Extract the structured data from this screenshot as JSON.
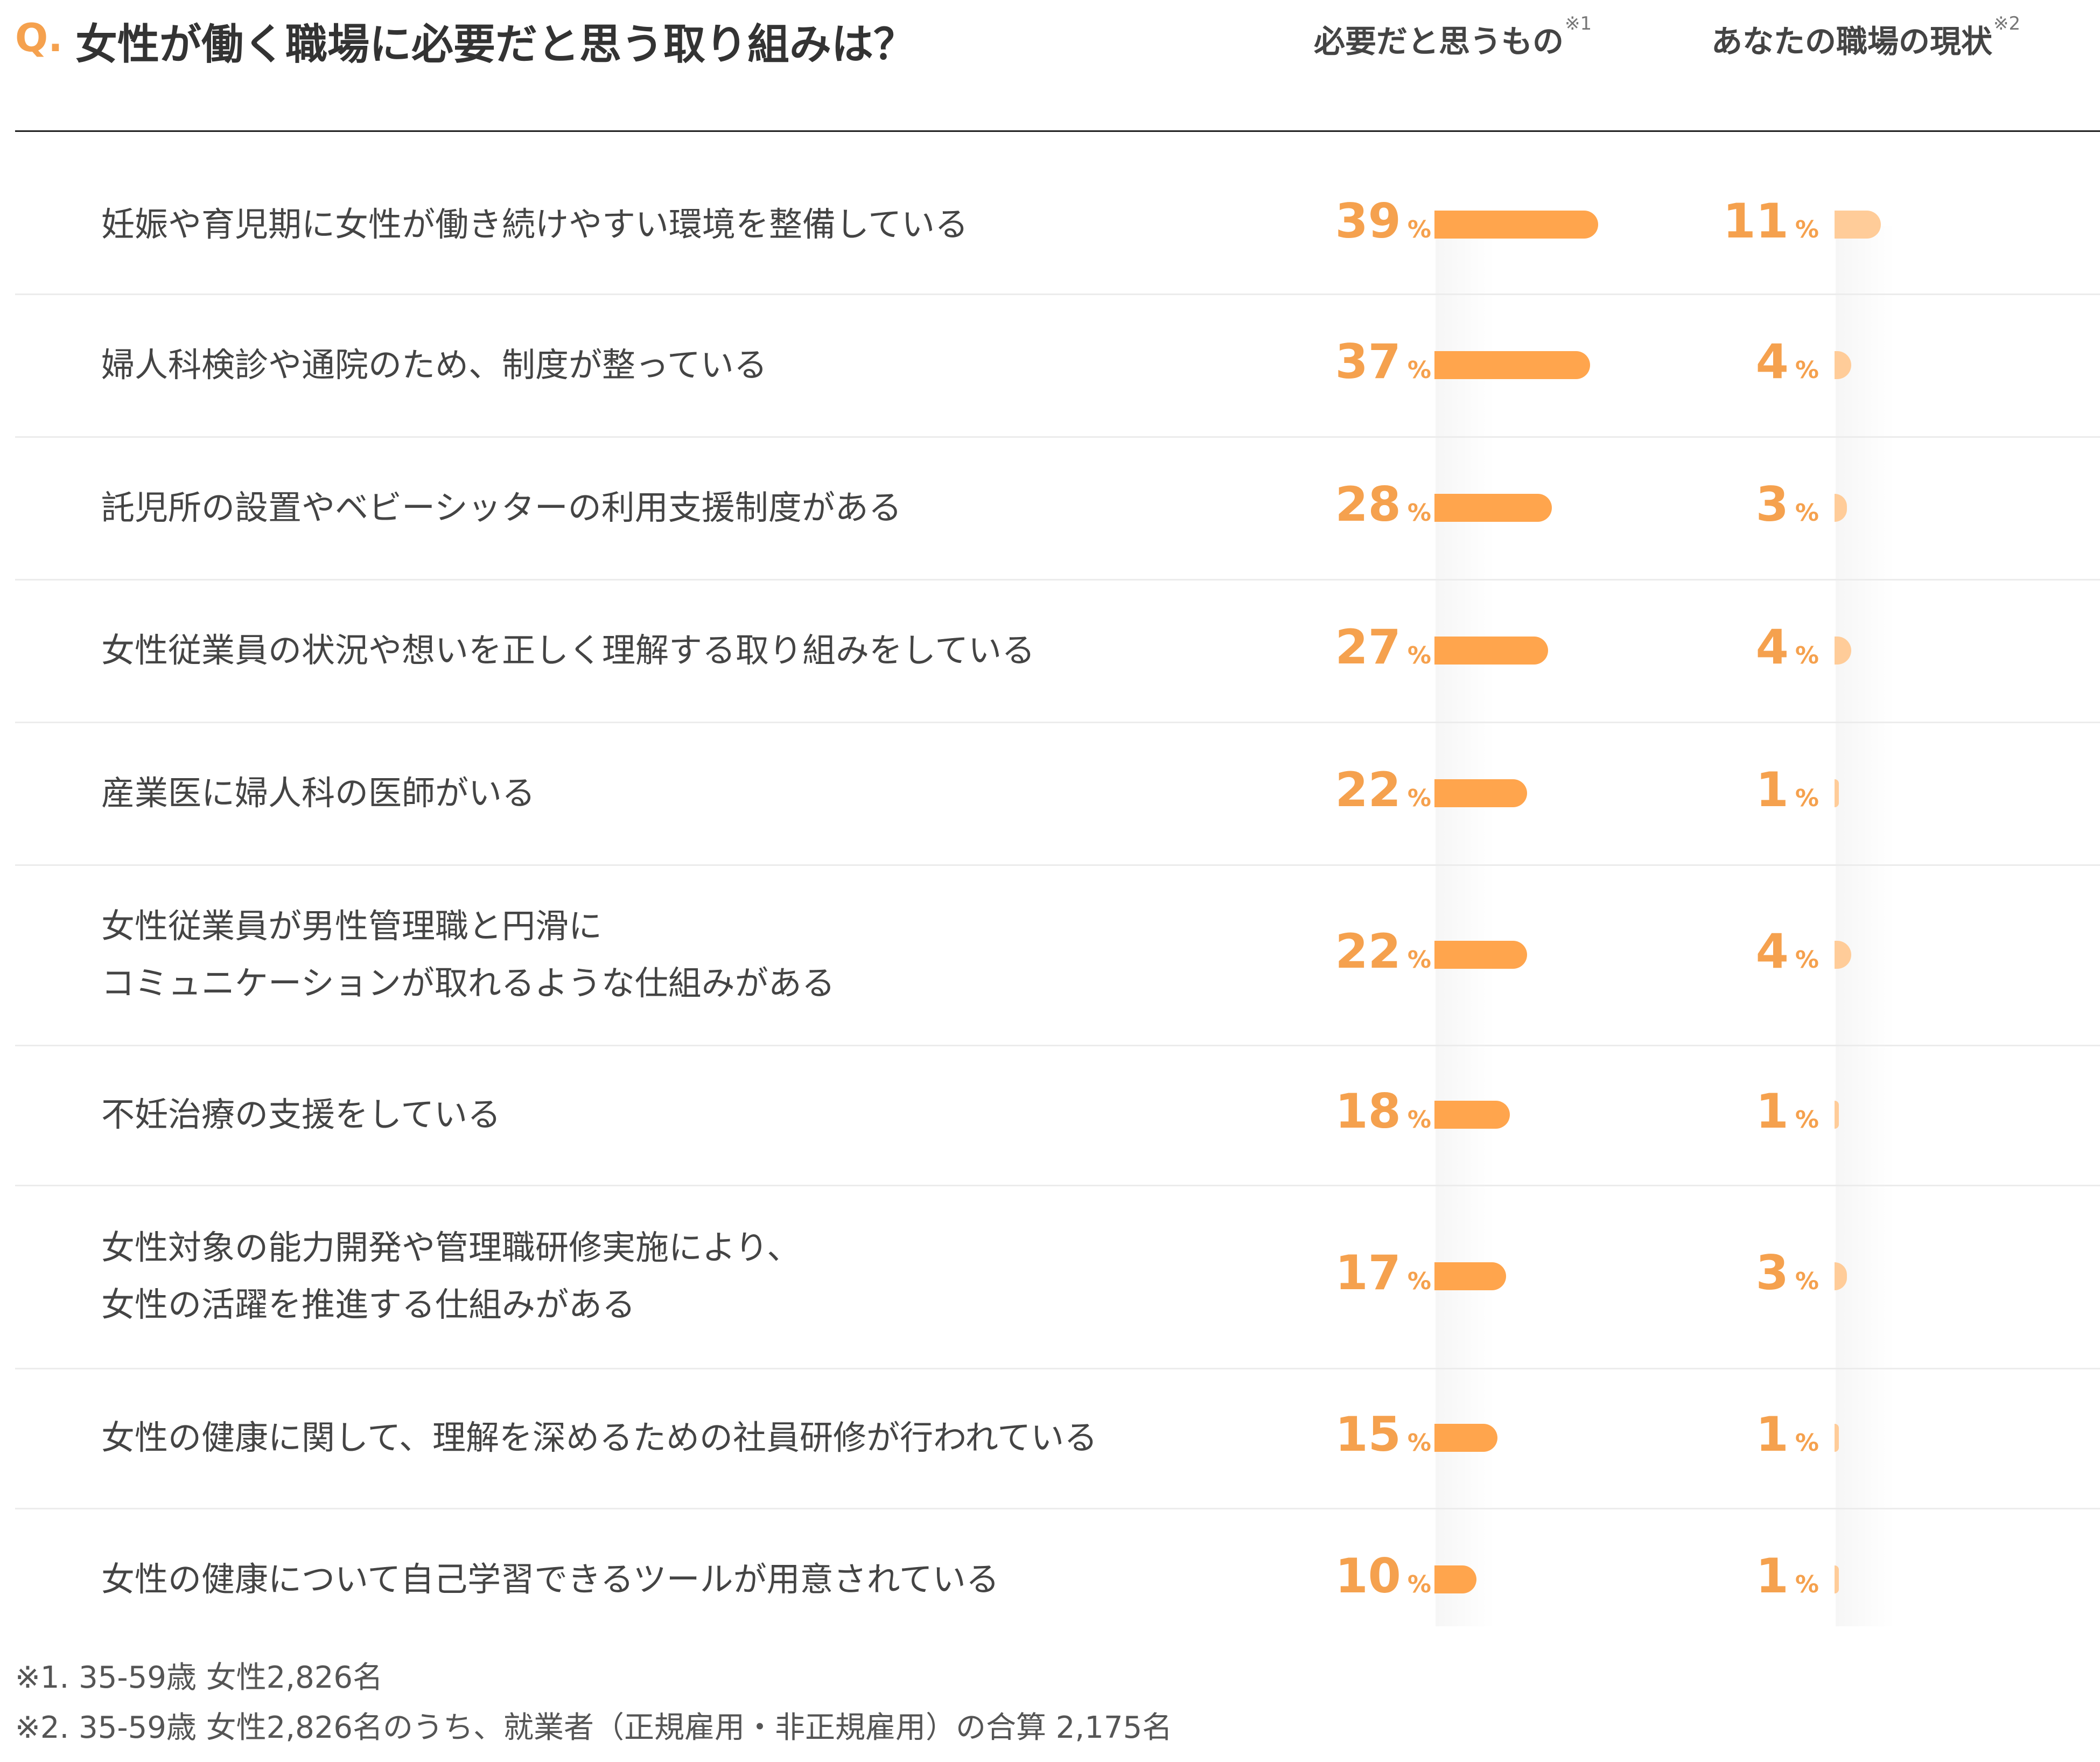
{
  "header": {
    "q_mark": "Q.",
    "question": "女性が働く職場に必要だと思う取り組みは？",
    "col_need_label": "必要だと思うもの",
    "col_need_note": "※1",
    "col_current_label": "あなたの職場の現状",
    "col_current_note": "※2"
  },
  "percent_sign": "%",
  "colors": {
    "accent": "#f5a14e",
    "need_bar": "#ffa54d",
    "current_bar": "#ffcc99"
  },
  "chart_data": {
    "type": "bar",
    "orientation": "horizontal",
    "categories": [
      "妊娠や育児期に女性が働き続けやすい環境を整備している",
      "婦人科検診や通院のため、制度が整っている",
      "託児所の設置やベビーシッターの利用支援制度がある",
      "女性従業員の状況や想いを正しく理解する取り組みをしている",
      "産業医に婦人科の医師がいる",
      "女性従業員が男性管理職と円滑に\nコミュニケーションが取れるような仕組みがある",
      "不妊治療の支援をしている",
      "女性対象の能力開発や管理職研修実施により、\n女性の活躍を推進する仕組みがある",
      "女性の健康に関して、理解を深めるための社員研修が行われている",
      "女性の健康について自己学習できるツールが用意されている"
    ],
    "series": [
      {
        "name": "必要だと思うもの",
        "values": [
          39,
          37,
          28,
          27,
          22,
          22,
          18,
          17,
          15,
          10
        ]
      },
      {
        "name": "あなたの職場の現状",
        "values": [
          11,
          4,
          3,
          4,
          1,
          4,
          1,
          3,
          1,
          1
        ]
      }
    ],
    "unit": "%"
  },
  "notes": [
    "※1. 35-59歳 女性2,826名",
    "※2. 35-59歳 女性2,826名のうち、就業者（正規雇用・非正規雇用）の合算 2,175名"
  ]
}
